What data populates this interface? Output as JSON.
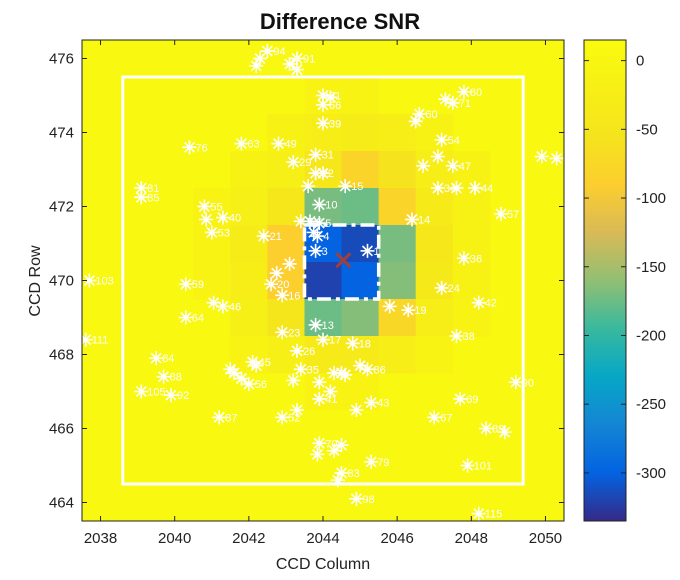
{
  "chart_data": {
    "type": "heatmap",
    "title": "Difference SNR",
    "xlabel": "CCD Column",
    "ylabel": "CCD Row",
    "xlim": [
      2037.5,
      2050.5
    ],
    "ylim": [
      463.5,
      476.5
    ],
    "x_ticks": [
      2038,
      2040,
      2042,
      2044,
      2046,
      2048,
      2050
    ],
    "y_ticks": [
      464,
      466,
      468,
      470,
      472,
      474,
      476
    ],
    "colorbar": {
      "range": [
        -335,
        15
      ],
      "ticks": [
        0,
        -50,
        -100,
        -150,
        -200,
        -250,
        -300
      ],
      "colormap": "parula"
    },
    "background_value": 5,
    "cells": [
      {
        "col": 2044,
        "row": 475,
        "v": -8
      },
      {
        "col": 2045,
        "row": 475,
        "v": -8
      },
      {
        "col": 2043,
        "row": 474,
        "v": -12
      },
      {
        "col": 2044,
        "row": 474,
        "v": -25
      },
      {
        "col": 2045,
        "row": 474,
        "v": -30
      },
      {
        "col": 2046,
        "row": 474,
        "v": -25
      },
      {
        "col": 2047,
        "row": 474,
        "v": -12
      },
      {
        "col": 2042,
        "row": 473,
        "v": -12
      },
      {
        "col": 2043,
        "row": 473,
        "v": -20
      },
      {
        "col": 2044,
        "row": 473,
        "v": -45
      },
      {
        "col": 2045,
        "row": 473,
        "v": -80
      },
      {
        "col": 2046,
        "row": 473,
        "v": -55
      },
      {
        "col": 2047,
        "row": 473,
        "v": -28
      },
      {
        "col": 2048,
        "row": 473,
        "v": -12
      },
      {
        "col": 2041,
        "row": 472,
        "v": -8
      },
      {
        "col": 2042,
        "row": 472,
        "v": -20
      },
      {
        "col": 2043,
        "row": 472,
        "v": -45
      },
      {
        "col": 2044,
        "row": 472,
        "v": -170
      },
      {
        "col": 2045,
        "row": 472,
        "v": -175
      },
      {
        "col": 2046,
        "row": 472,
        "v": -80
      },
      {
        "col": 2047,
        "row": 472,
        "v": -35
      },
      {
        "col": 2048,
        "row": 472,
        "v": -12
      },
      {
        "col": 2041,
        "row": 471,
        "v": -8
      },
      {
        "col": 2042,
        "row": 471,
        "v": -30
      },
      {
        "col": 2043,
        "row": 471,
        "v": -90
      },
      {
        "col": 2044,
        "row": 471,
        "v": -300
      },
      {
        "col": 2045,
        "row": 471,
        "v": -315
      },
      {
        "col": 2046,
        "row": 471,
        "v": -170
      },
      {
        "col": 2047,
        "row": 471,
        "v": -45
      },
      {
        "col": 2048,
        "row": 471,
        "v": -12
      },
      {
        "col": 2041,
        "row": 470,
        "v": -8
      },
      {
        "col": 2042,
        "row": 470,
        "v": -25
      },
      {
        "col": 2043,
        "row": 470,
        "v": -90
      },
      {
        "col": 2044,
        "row": 470,
        "v": -320
      },
      {
        "col": 2045,
        "row": 470,
        "v": -300
      },
      {
        "col": 2046,
        "row": 470,
        "v": -165
      },
      {
        "col": 2047,
        "row": 470,
        "v": -40
      },
      {
        "col": 2048,
        "row": 470,
        "v": -12
      },
      {
        "col": 2042,
        "row": 469,
        "v": -20
      },
      {
        "col": 2043,
        "row": 469,
        "v": -50
      },
      {
        "col": 2044,
        "row": 469,
        "v": -175
      },
      {
        "col": 2045,
        "row": 469,
        "v": -165
      },
      {
        "col": 2046,
        "row": 469,
        "v": -75
      },
      {
        "col": 2047,
        "row": 469,
        "v": -25
      },
      {
        "col": 2048,
        "row": 469,
        "v": -8
      },
      {
        "col": 2042,
        "row": 468,
        "v": -10
      },
      {
        "col": 2043,
        "row": 468,
        "v": -20
      },
      {
        "col": 2044,
        "row": 468,
        "v": -35
      },
      {
        "col": 2045,
        "row": 468,
        "v": -35
      },
      {
        "col": 2046,
        "row": 468,
        "v": -25
      },
      {
        "col": 2047,
        "row": 468,
        "v": -10
      },
      {
        "col": 2044,
        "row": 467,
        "v": -10
      },
      {
        "col": 2045,
        "row": 467,
        "v": -10
      }
    ],
    "optimal_aperture": {
      "col": [
        2044,
        2045
      ],
      "row": [
        470,
        471
      ]
    },
    "outer_box": {
      "col": [
        2038.6,
        2049.4
      ],
      "row": [
        464.5,
        475.5
      ]
    },
    "target_marker": {
      "x": 2044.55,
      "y": 470.55
    },
    "stars": [
      {
        "label": "1",
        "x": 2045.2,
        "y": 470.8
      },
      {
        "label": "3",
        "x": 2043.8,
        "y": 470.8
      },
      {
        "label": "4",
        "x": 2043.85,
        "y": 471.2
      },
      {
        "label": "5",
        "x": 2043.9,
        "y": 471.55
      },
      {
        "label": "6",
        "x": 2043.65,
        "y": 471.6
      },
      {
        "label": "7",
        "x": 2043.4,
        "y": 471.6
      },
      {
        "label": "10",
        "x": 2043.9,
        "y": 472.05
      },
      {
        "label": "13",
        "x": 2043.8,
        "y": 468.8
      },
      {
        "label": "14",
        "x": 2046.4,
        "y": 471.65
      },
      {
        "label": "15",
        "x": 2044.6,
        "y": 472.55
      },
      {
        "label": "16",
        "x": 2042.9,
        "y": 469.6
      },
      {
        "label": "17",
        "x": 2044.0,
        "y": 468.4
      },
      {
        "label": "18",
        "x": 2044.8,
        "y": 468.3
      },
      {
        "label": "19",
        "x": 2046.3,
        "y": 469.2
      },
      {
        "label": "20",
        "x": 2042.6,
        "y": 469.9
      },
      {
        "label": "21",
        "x": 2042.4,
        "y": 471.2
      },
      {
        "label": "22",
        "x": 2043.8,
        "y": 472.9
      },
      {
        "label": "23",
        "x": 2042.9,
        "y": 468.6
      },
      {
        "label": "24",
        "x": 2047.2,
        "y": 469.8
      },
      {
        "label": "26",
        "x": 2043.3,
        "y": 468.1
      },
      {
        "label": "29",
        "x": 2043.2,
        "y": 473.2
      },
      {
        "label": "31",
        "x": 2043.8,
        "y": 473.4
      },
      {
        "label": "34",
        "x": 2047.1,
        "y": 472.5
      },
      {
        "label": "35",
        "x": 2043.4,
        "y": 467.6
      },
      {
        "label": "36",
        "x": 2047.8,
        "y": 470.6
      },
      {
        "label": "38",
        "x": 2047.6,
        "y": 468.5
      },
      {
        "label": "39",
        "x": 2044.0,
        "y": 474.25
      },
      {
        "label": "40",
        "x": 2041.3,
        "y": 471.7
      },
      {
        "label": "41",
        "x": 2043.9,
        "y": 466.8
      },
      {
        "label": "42",
        "x": 2048.2,
        "y": 469.4
      },
      {
        "label": "43",
        "x": 2045.3,
        "y": 466.7
      },
      {
        "label": "44",
        "x": 2048.1,
        "y": 472.5
      },
      {
        "label": "45",
        "x": 2042.1,
        "y": 467.8
      },
      {
        "label": "46",
        "x": 2041.3,
        "y": 469.3
      },
      {
        "label": "47",
        "x": 2047.5,
        "y": 473.1
      },
      {
        "label": "49",
        "x": 2042.8,
        "y": 473.7
      },
      {
        "label": "52",
        "x": 2042.9,
        "y": 466.3
      },
      {
        "label": "53",
        "x": 2041.0,
        "y": 471.3
      },
      {
        "label": "54",
        "x": 2047.2,
        "y": 473.8
      },
      {
        "label": "55",
        "x": 2040.8,
        "y": 472.0
      },
      {
        "label": "56",
        "x": 2042.0,
        "y": 467.2
      },
      {
        "label": "57",
        "x": 2048.8,
        "y": 471.8
      },
      {
        "label": "59",
        "x": 2040.3,
        "y": 469.9
      },
      {
        "label": "60",
        "x": 2046.6,
        "y": 474.5
      },
      {
        "label": "61",
        "x": 2044.0,
        "y": 475.0
      },
      {
        "label": "63",
        "x": 2041.8,
        "y": 473.7
      },
      {
        "label": "64",
        "x": 2040.3,
        "y": 469.0
      },
      {
        "label": "66",
        "x": 2044.0,
        "y": 474.75
      },
      {
        "label": "67",
        "x": 2047.0,
        "y": 466.3
      },
      {
        "label": "69",
        "x": 2047.7,
        "y": 466.8
      },
      {
        "label": "70",
        "x": 2043.9,
        "y": 465.6
      },
      {
        "label": "71",
        "x": 2047.5,
        "y": 474.8
      },
      {
        "label": "76",
        "x": 2040.4,
        "y": 473.6
      },
      {
        "label": "79",
        "x": 2045.3,
        "y": 465.1
      },
      {
        "label": "80",
        "x": 2047.8,
        "y": 475.1
      },
      {
        "label": "81",
        "x": 2039.1,
        "y": 472.5
      },
      {
        "label": "83",
        "x": 2044.5,
        "y": 464.8
      },
      {
        "label": "84",
        "x": 2039.5,
        "y": 467.9
      },
      {
        "label": "85",
        "x": 2039.1,
        "y": 472.25
      },
      {
        "label": "86",
        "x": 2045.2,
        "y": 467.6
      },
      {
        "label": "87",
        "x": 2041.2,
        "y": 466.3
      },
      {
        "label": "88",
        "x": 2039.7,
        "y": 467.4
      },
      {
        "label": "89",
        "x": 2048.4,
        "y": 466.0
      },
      {
        "label": "90",
        "x": 2049.2,
        "y": 467.25
      },
      {
        "label": "91",
        "x": 2043.3,
        "y": 476.0
      },
      {
        "label": "92",
        "x": 2039.9,
        "y": 466.9
      },
      {
        "label": "94",
        "x": 2042.5,
        "y": 476.2
      },
      {
        "label": "98",
        "x": 2044.9,
        "y": 464.1
      },
      {
        "label": "101",
        "x": 2047.9,
        "y": 465.0
      },
      {
        "label": "103",
        "x": 2037.7,
        "y": 470.0
      },
      {
        "label": "105",
        "x": 2039.1,
        "y": 467.0
      },
      {
        "label": "111",
        "x": 2037.6,
        "y": 468.4
      },
      {
        "label": "115",
        "x": 2048.2,
        "y": 463.7
      }
    ],
    "extra_stars": [
      {
        "x": 2042.3,
        "y": 476.0
      },
      {
        "x": 2042.2,
        "y": 475.8
      },
      {
        "x": 2043.3,
        "y": 475.7
      },
      {
        "x": 2043.1,
        "y": 475.85
      },
      {
        "x": 2044.2,
        "y": 474.95
      },
      {
        "x": 2044.0,
        "y": 472.9
      },
      {
        "x": 2043.6,
        "y": 472.55
      },
      {
        "x": 2043.75,
        "y": 471.3
      },
      {
        "x": 2043.1,
        "y": 470.45
      },
      {
        "x": 2042.75,
        "y": 470.2
      },
      {
        "x": 2040.85,
        "y": 471.65
      },
      {
        "x": 2041.05,
        "y": 469.4
      },
      {
        "x": 2041.6,
        "y": 467.5
      },
      {
        "x": 2041.8,
        "y": 467.35
      },
      {
        "x": 2042.2,
        "y": 467.7
      },
      {
        "x": 2043.2,
        "y": 467.3
      },
      {
        "x": 2043.3,
        "y": 466.5
      },
      {
        "x": 2043.9,
        "y": 467.25
      },
      {
        "x": 2044.3,
        "y": 467.5
      },
      {
        "x": 2044.5,
        "y": 467.5
      },
      {
        "x": 2044.6,
        "y": 467.45
      },
      {
        "x": 2045.0,
        "y": 467.7
      },
      {
        "x": 2044.2,
        "y": 467.0
      },
      {
        "x": 2044.9,
        "y": 466.5
      },
      {
        "x": 2044.3,
        "y": 465.4
      },
      {
        "x": 2044.5,
        "y": 465.55
      },
      {
        "x": 2043.85,
        "y": 465.3
      },
      {
        "x": 2044.4,
        "y": 464.6
      },
      {
        "x": 2045.8,
        "y": 469.3
      },
      {
        "x": 2046.7,
        "y": 473.1
      },
      {
        "x": 2047.1,
        "y": 473.35
      },
      {
        "x": 2047.3,
        "y": 474.9
      },
      {
        "x": 2047.6,
        "y": 472.5
      },
      {
        "x": 2049.9,
        "y": 473.35
      },
      {
        "x": 2050.3,
        "y": 473.3
      },
      {
        "x": 2048.9,
        "y": 465.9
      },
      {
        "x": 2041.5,
        "y": 467.6
      },
      {
        "x": 2046.5,
        "y": 474.3
      }
    ]
  }
}
